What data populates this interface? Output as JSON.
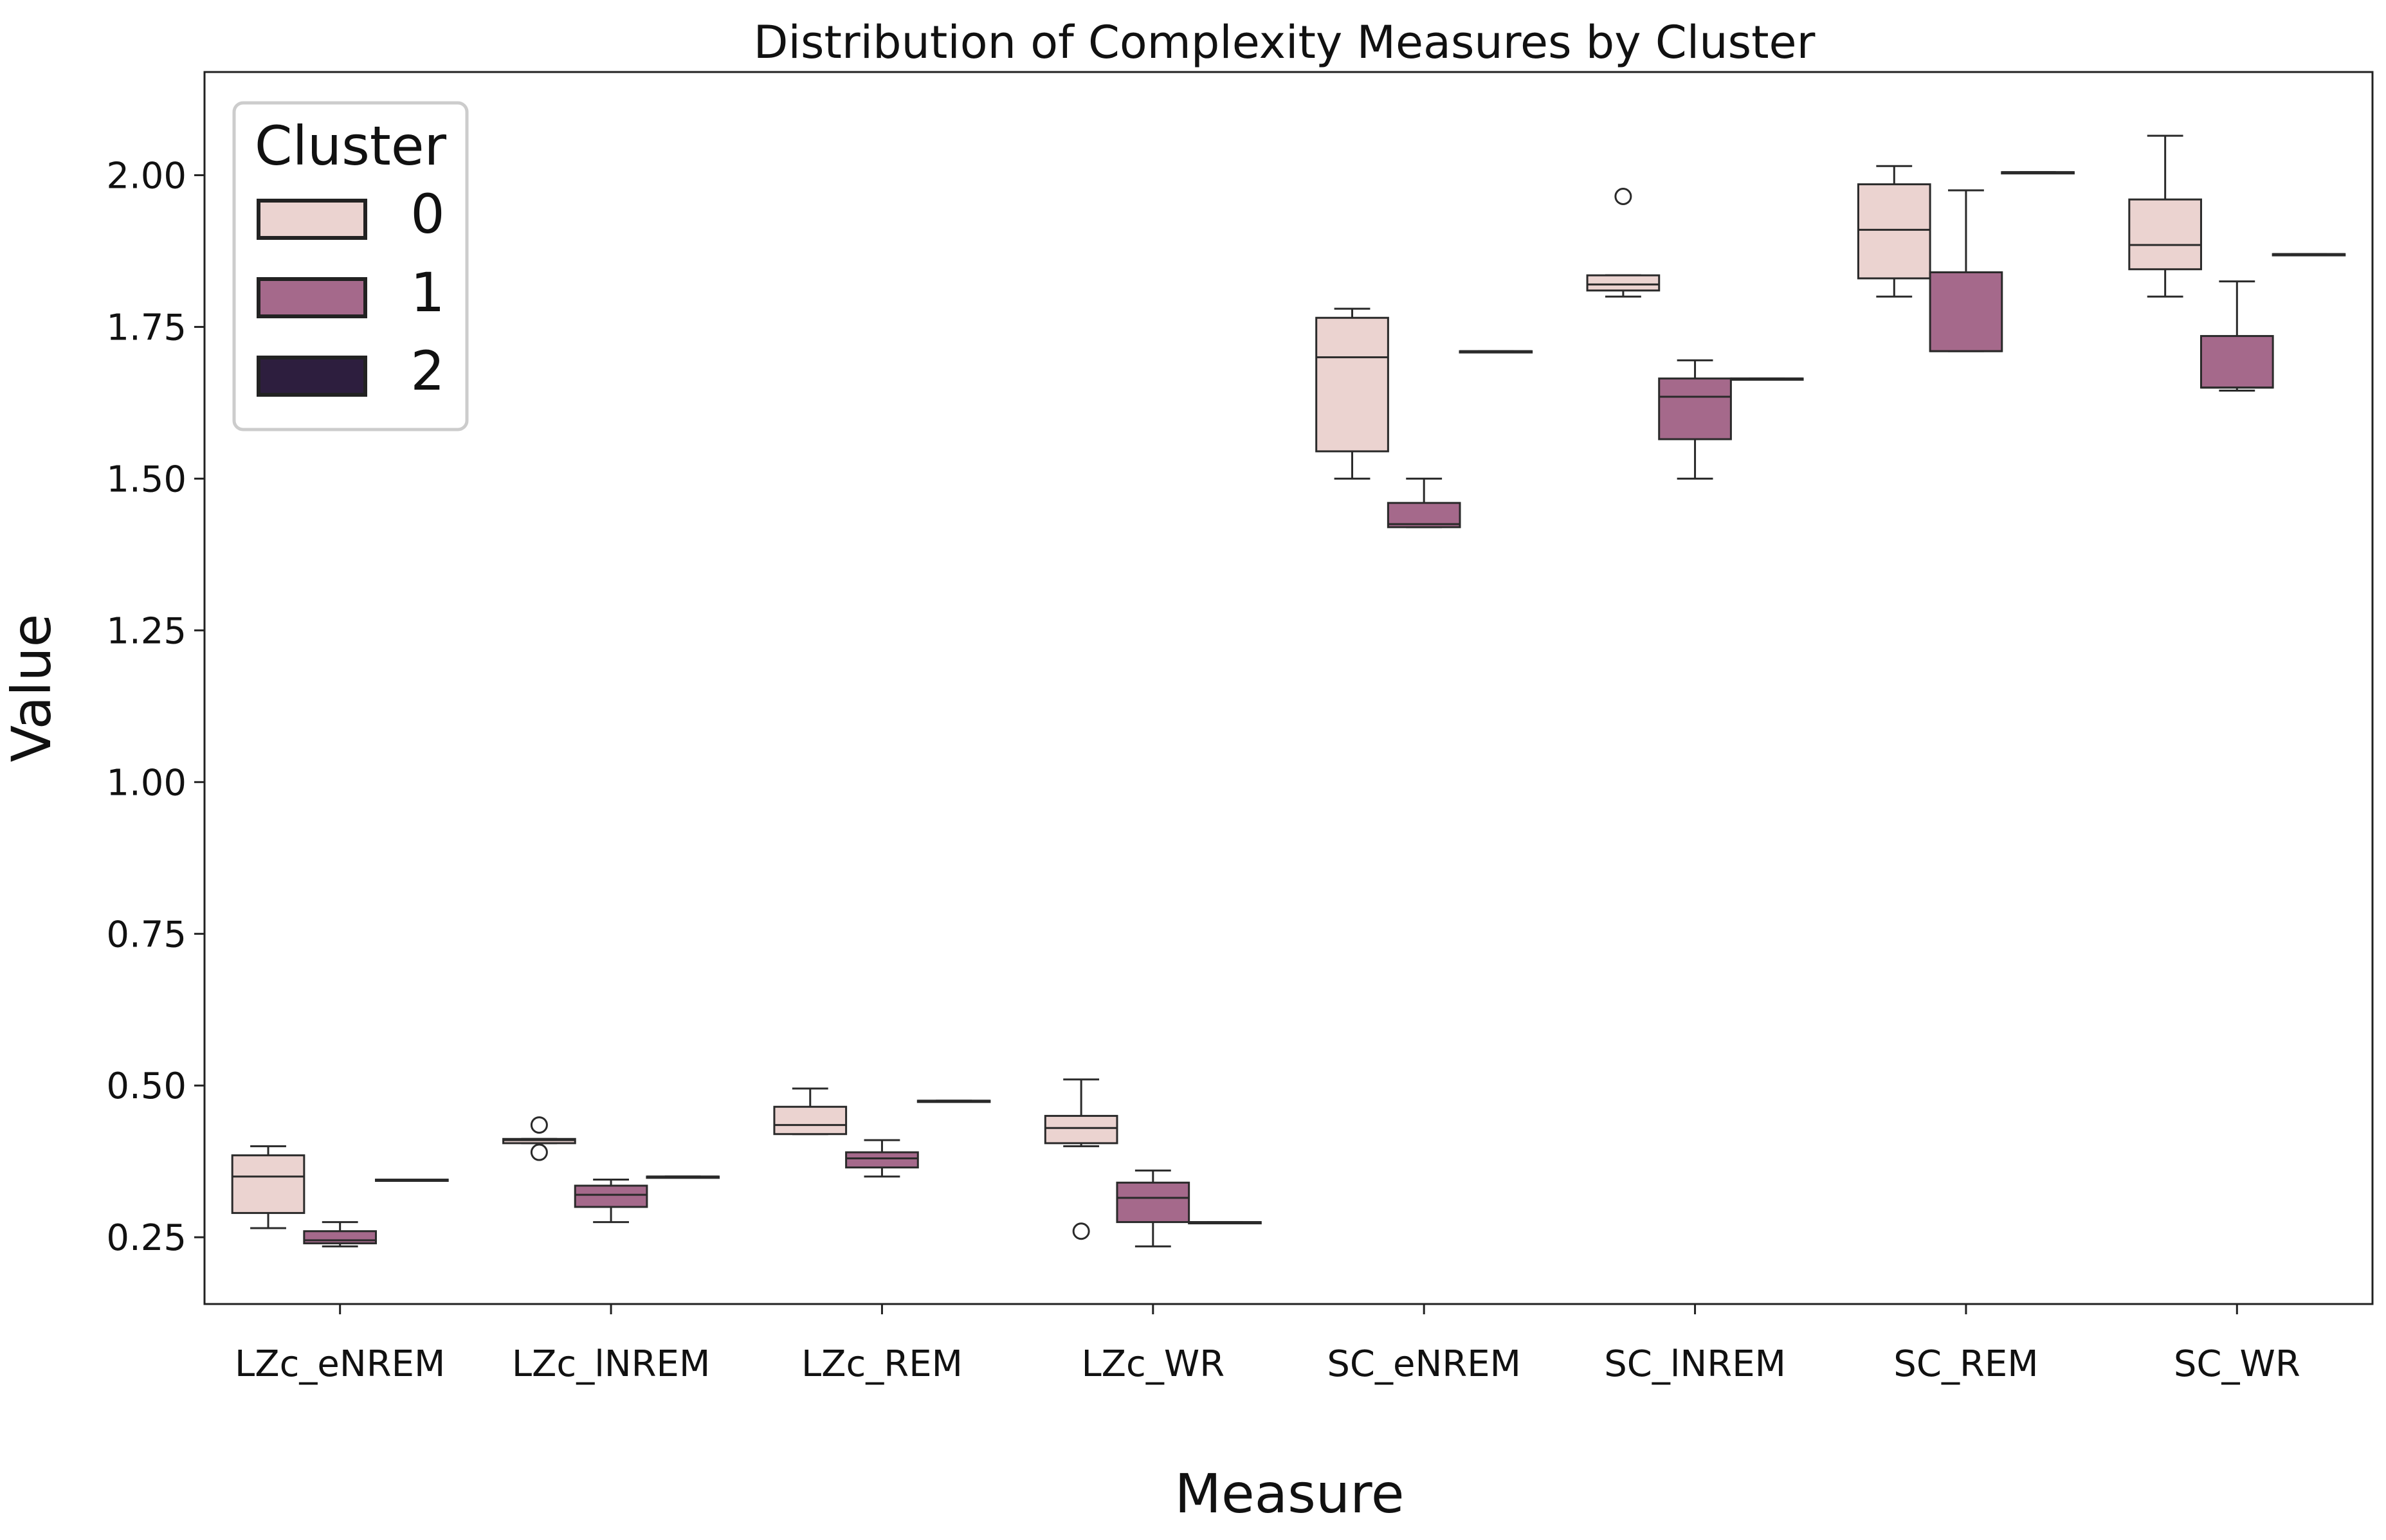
{
  "chart_data": {
    "type": "box",
    "title": "Distribution of Complexity Measures by Cluster",
    "xlabel": "Measure",
    "ylabel": "Value",
    "ylim": [
      0.14,
      2.17
    ],
    "yticks": [
      0.25,
      0.5,
      0.75,
      1.0,
      1.25,
      1.5,
      1.75,
      2.0
    ],
    "ytick_labels": [
      "0.25",
      "0.50",
      "0.75",
      "1.00",
      "1.25",
      "1.50",
      "1.75",
      "2.00"
    ],
    "categories": [
      "LZc_eNREM",
      "LZc_lNREM",
      "LZc_REM",
      "LZc_WR",
      "SC_eNREM",
      "SC_lNREM",
      "SC_REM",
      "SC_WR"
    ],
    "legend": {
      "title": "Cluster",
      "position": "top-left"
    },
    "series": [
      {
        "name": "0",
        "color": "#ebd3d0",
        "boxes": [
          {
            "min": 0.265,
            "q1": 0.29,
            "median": 0.35,
            "q3": 0.385,
            "max": 0.4,
            "outliers": []
          },
          {
            "min": 0.405,
            "q1": 0.405,
            "median": 0.41,
            "q3": 0.412,
            "max": 0.412,
            "outliers": [
              0.435,
              0.39
            ]
          },
          {
            "min": 0.42,
            "q1": 0.42,
            "median": 0.435,
            "q3": 0.465,
            "max": 0.495,
            "outliers": []
          },
          {
            "min": 0.4,
            "q1": 0.405,
            "median": 0.43,
            "q3": 0.45,
            "max": 0.51,
            "outliers": [
              0.26
            ]
          },
          {
            "min": 1.5,
            "q1": 1.545,
            "median": 1.7,
            "q3": 1.765,
            "max": 1.78,
            "outliers": []
          },
          {
            "min": 1.8,
            "q1": 1.81,
            "median": 1.82,
            "q3": 1.835,
            "max": 1.835,
            "outliers": [
              1.965
            ]
          },
          {
            "min": 1.8,
            "q1": 1.83,
            "median": 1.91,
            "q3": 1.985,
            "max": 2.015,
            "outliers": []
          },
          {
            "min": 1.8,
            "q1": 1.845,
            "median": 1.885,
            "q3": 1.96,
            "max": 2.065,
            "outliers": []
          }
        ]
      },
      {
        "name": "1",
        "color": "#a5698b",
        "boxes": [
          {
            "min": 0.235,
            "q1": 0.24,
            "median": 0.245,
            "q3": 0.26,
            "max": 0.275,
            "outliers": []
          },
          {
            "min": 0.275,
            "q1": 0.3,
            "median": 0.32,
            "q3": 0.335,
            "max": 0.345,
            "outliers": []
          },
          {
            "min": 0.35,
            "q1": 0.365,
            "median": 0.38,
            "q3": 0.39,
            "max": 0.41,
            "outliers": []
          },
          {
            "min": 0.235,
            "q1": 0.275,
            "median": 0.315,
            "q3": 0.34,
            "max": 0.36,
            "outliers": []
          },
          {
            "min": 1.42,
            "q1": 1.42,
            "median": 1.425,
            "q3": 1.46,
            "max": 1.5,
            "outliers": []
          },
          {
            "min": 1.5,
            "q1": 1.565,
            "median": 1.635,
            "q3": 1.665,
            "max": 1.695,
            "outliers": []
          },
          {
            "min": 1.71,
            "q1": 1.71,
            "median": 1.71,
            "q3": 1.84,
            "max": 1.975,
            "outliers": []
          },
          {
            "min": 1.645,
            "q1": 1.65,
            "median": 1.65,
            "q3": 1.735,
            "max": 1.825,
            "outliers": []
          }
        ]
      },
      {
        "name": "2",
        "color": "#2d1e3e",
        "boxes": [
          {
            "min": 0.345,
            "q1": 0.345,
            "median": 0.345,
            "q3": 0.345,
            "max": 0.345,
            "outliers": []
          },
          {
            "min": 0.35,
            "q1": 0.35,
            "median": 0.35,
            "q3": 0.35,
            "max": 0.35,
            "outliers": []
          },
          {
            "min": 0.475,
            "q1": 0.475,
            "median": 0.475,
            "q3": 0.475,
            "max": 0.475,
            "outliers": []
          },
          {
            "min": 0.275,
            "q1": 0.275,
            "median": 0.275,
            "q3": 0.275,
            "max": 0.275,
            "outliers": []
          },
          {
            "min": 1.71,
            "q1": 1.71,
            "median": 1.71,
            "q3": 1.71,
            "max": 1.71,
            "outliers": []
          },
          {
            "min": 1.665,
            "q1": 1.665,
            "median": 1.665,
            "q3": 1.665,
            "max": 1.665,
            "outliers": []
          },
          {
            "min": 2.005,
            "q1": 2.005,
            "median": 2.005,
            "q3": 2.005,
            "max": 2.005,
            "outliers": []
          },
          {
            "min": 1.87,
            "q1": 1.87,
            "median": 1.87,
            "q3": 1.87,
            "max": 1.87,
            "outliers": []
          }
        ]
      }
    ]
  }
}
